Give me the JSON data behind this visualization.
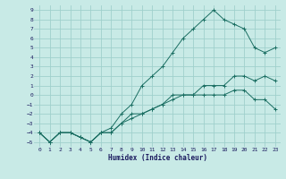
{
  "xlabel": "Humidex (Indice chaleur)",
  "bg_color": "#c8eae6",
  "grid_color": "#a0d0cc",
  "line_color": "#1a6e62",
  "xlim": [
    -0.5,
    23.5
  ],
  "ylim": [
    -5.5,
    9.5
  ],
  "xticks": [
    0,
    1,
    2,
    3,
    4,
    5,
    6,
    7,
    8,
    9,
    10,
    11,
    12,
    13,
    14,
    15,
    16,
    17,
    18,
    19,
    20,
    21,
    22,
    23
  ],
  "yticks": [
    -5,
    -4,
    -3,
    -2,
    -1,
    0,
    1,
    2,
    3,
    4,
    5,
    6,
    7,
    8,
    9
  ],
  "line1_x": [
    0,
    1,
    2,
    3,
    4,
    5,
    6,
    7,
    8,
    9,
    10,
    11,
    12,
    13,
    14,
    15,
    16,
    17,
    18,
    19,
    20,
    21,
    22,
    23
  ],
  "line1_y": [
    -4,
    -5,
    -4,
    -4,
    -4.5,
    -5,
    -4,
    -3.5,
    -2,
    -1,
    1,
    2,
    3,
    4.5,
    6,
    7,
    8,
    9,
    8,
    7.5,
    7,
    5,
    4.5,
    5
  ],
  "line2_x": [
    0,
    1,
    2,
    3,
    4,
    5,
    6,
    7,
    8,
    9,
    10,
    11,
    12,
    13,
    14,
    15,
    16,
    17,
    18,
    19,
    20,
    21,
    22,
    23
  ],
  "line2_y": [
    -4,
    -5,
    -4,
    -4,
    -4.5,
    -5,
    -4,
    -4,
    -3,
    -2,
    -2,
    -1.5,
    -1,
    0,
    0,
    0,
    1,
    1,
    1,
    2,
    2,
    1.5,
    2,
    1.5
  ],
  "line3_x": [
    0,
    1,
    2,
    3,
    4,
    5,
    6,
    7,
    8,
    9,
    10,
    11,
    12,
    13,
    14,
    15,
    16,
    17,
    18,
    19,
    20,
    21,
    22,
    23
  ],
  "line3_y": [
    -4,
    -5,
    -4,
    -4,
    -4.5,
    -5,
    -4,
    -4,
    -3,
    -2.5,
    -2,
    -1.5,
    -1,
    -0.5,
    0,
    0,
    0,
    0,
    0,
    0.5,
    0.5,
    -0.5,
    -0.5,
    -1.5
  ]
}
